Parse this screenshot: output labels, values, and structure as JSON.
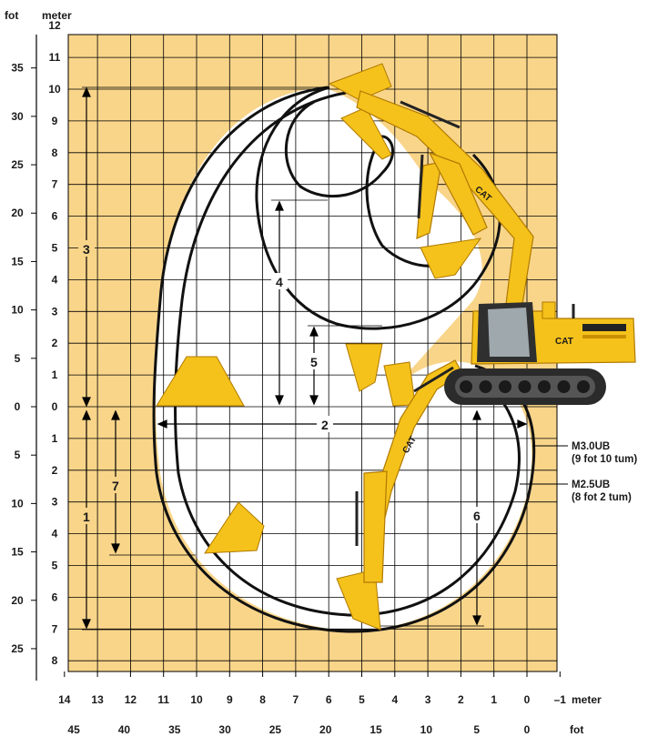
{
  "axis_titles": {
    "left_feet": "fot",
    "left_meter": "meter",
    "bottom_meter": "meter",
    "bottom_feet": "fot"
  },
  "meter_ticks_vertical": [
    "12",
    "11",
    "10",
    "9",
    "8",
    "7",
    "6",
    "5",
    "4",
    "3",
    "2",
    "1",
    "0",
    "1",
    "2",
    "3",
    "4",
    "5",
    "6",
    "7",
    "8"
  ],
  "feet_ticks_vertical": [
    "35",
    "30",
    "25",
    "20",
    "15",
    "10",
    "5",
    "0",
    "5",
    "10",
    "15",
    "20",
    "25"
  ],
  "meter_ticks_horizontal": [
    "14",
    "13",
    "12",
    "11",
    "10",
    "9",
    "8",
    "7",
    "6",
    "5",
    "4",
    "3",
    "2",
    "1",
    "0",
    "–1"
  ],
  "feet_ticks_horizontal": [
    "45",
    "40",
    "35",
    "30",
    "25",
    "20",
    "15",
    "10",
    "5",
    "0"
  ],
  "dimension_labels": [
    "1",
    "2",
    "3",
    "4",
    "5",
    "6",
    "7"
  ],
  "legend": [
    {
      "name": "M3.0UB",
      "detail": "(9 fot 10 tum)"
    },
    {
      "name": "M2.5UB",
      "detail": "(8 fot 2 tum)"
    }
  ],
  "brand": "CAT",
  "colors": {
    "background": "#f9d58a",
    "work_area": "#ffffff",
    "grid": "#000000",
    "machine": "#f5c21b",
    "machine_dark": "#c98f00",
    "track": "#2b2b2b",
    "text": "#1a1a1a"
  }
}
